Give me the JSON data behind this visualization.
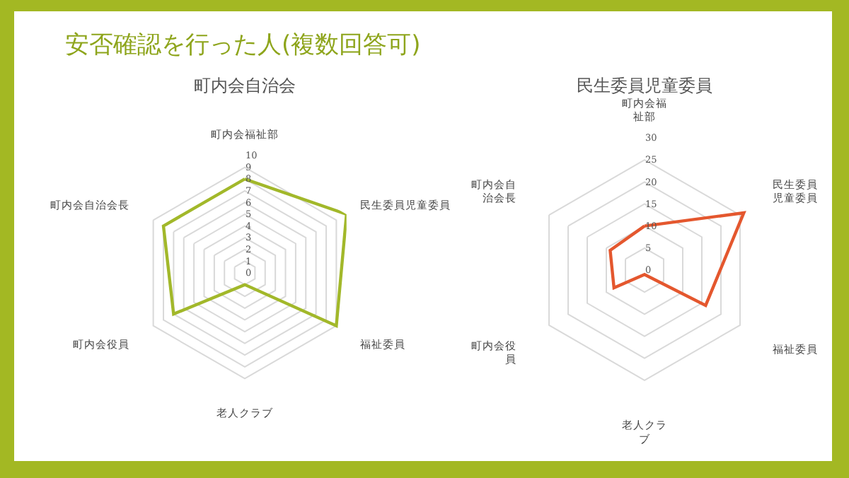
{
  "chart_data": [
    {
      "type": "radar",
      "title": "町内会自治会",
      "annotations": [
        "安否確認を行った人(複数回答可)"
      ],
      "categories": [
        "町内会福祉部",
        "民生委員児童委員",
        "福祉委員",
        "老人クラブ",
        "町内会役員",
        "町内会自治会長"
      ],
      "series": [
        {
          "color": "#a2b82a",
          "values": [
            8,
            10,
            9,
            1,
            7,
            8
          ]
        }
      ],
      "ylim": [
        0,
        10
      ],
      "yticks": [
        0,
        1,
        2,
        3,
        4,
        5,
        6,
        7,
        8,
        9,
        10
      ],
      "grid": true
    },
    {
      "type": "radar",
      "title": "民生委員児童委員",
      "categories": [
        "町内会福祉部",
        "民生委員児童委員",
        "福祉委員",
        "老人クラブ",
        "町内会役員",
        "町内会自治会長"
      ],
      "series": [
        {
          "color": "#e4572e",
          "values": [
            10,
            26,
            16,
            1,
            8,
            9
          ]
        }
      ],
      "ylim": [
        0,
        30
      ],
      "yticks": [
        0,
        5,
        10,
        15,
        20,
        25,
        30
      ],
      "grid": true
    }
  ]
}
